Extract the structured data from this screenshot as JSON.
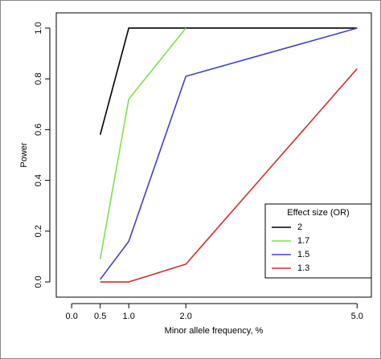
{
  "chart_data": {
    "type": "line",
    "x_label": "Minor allele frequency, %",
    "y_label": "Power",
    "x": [
      0.5,
      1.0,
      2.0,
      5.0
    ],
    "series": [
      {
        "name": "2",
        "color": "#000000",
        "values": [
          0.58,
          1.0,
          1.0,
          1.0
        ]
      },
      {
        "name": "1.7",
        "color": "#80e050",
        "values": [
          0.09,
          0.72,
          1.0,
          null
        ]
      },
      {
        "name": "1.5",
        "color": "#4040d0",
        "values": [
          0.01,
          0.16,
          0.81,
          1.0
        ]
      },
      {
        "name": "1.3",
        "color": "#cc3333",
        "values": [
          0.0,
          0.0,
          0.07,
          0.84
        ]
      }
    ],
    "xlim": [
      -0.27,
      5.25
    ],
    "xticks": [
      {
        "value": 0,
        "label": "0.0"
      },
      0.5,
      {
        "value": 1,
        "label": "1.0"
      },
      {
        "value": 2,
        "label": "2.0"
      },
      {
        "value": 5,
        "label": "5.0"
      }
    ],
    "ylim": [
      -0.06,
      1.06
    ],
    "yticks": [
      {
        "value": 0,
        "label": "0.0"
      },
      0.2,
      0.4,
      0.6,
      0.8,
      {
        "value": 1,
        "label": "1.0"
      }
    ],
    "legend_title": "Effect size (OR)",
    "legend_position": "bottom-right"
  }
}
